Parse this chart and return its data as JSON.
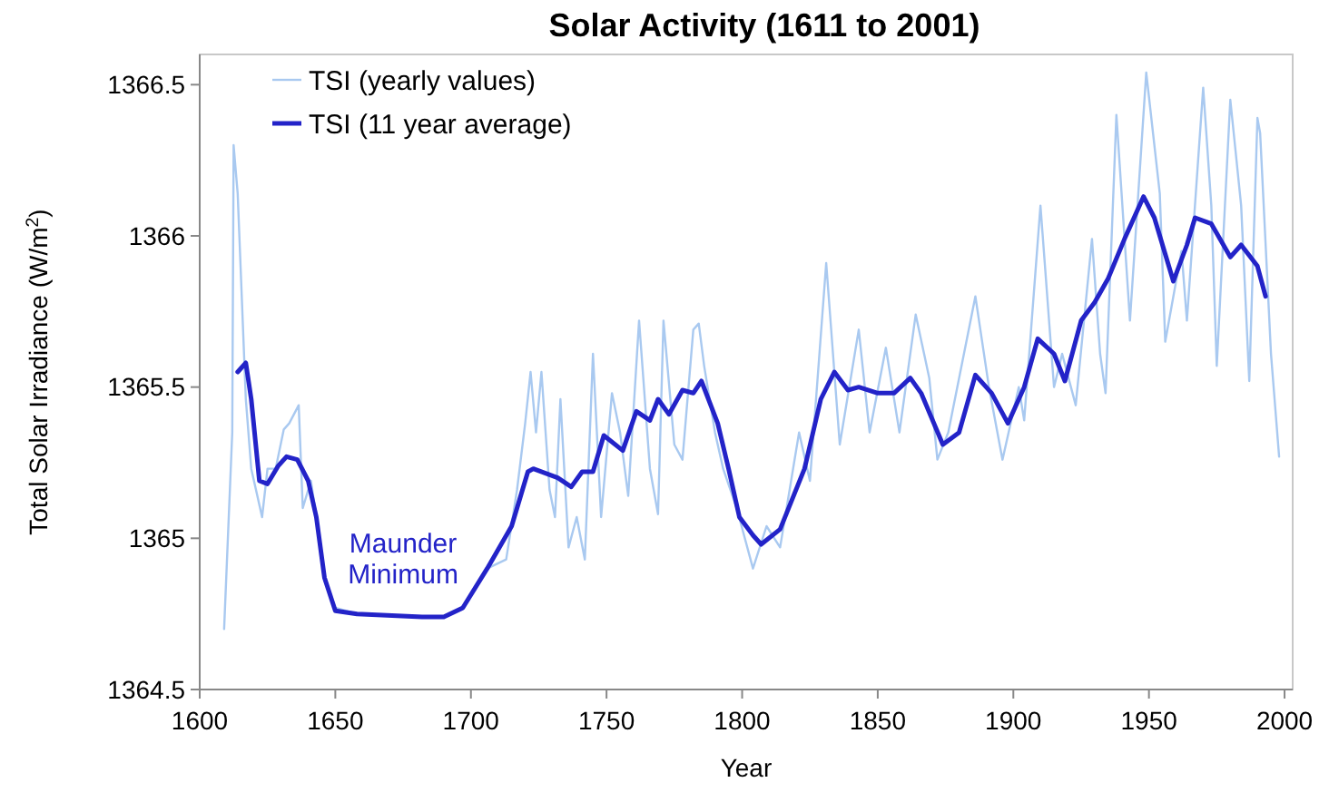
{
  "chart_data": {
    "type": "line",
    "title": "Solar Activity (1611 to 2001)",
    "xlabel": "Year",
    "ylabel": "Total Solar Irradiance (W/m$^{2}$)",
    "xlim": [
      1600,
      2003
    ],
    "ylim": [
      1364.5,
      1366.6
    ],
    "xticks": [
      1600,
      1650,
      1700,
      1750,
      1800,
      1850,
      1900,
      1950,
      2000
    ],
    "yticks": [
      1364.5,
      1365,
      1365.5,
      1366,
      1366.5
    ],
    "grid": false,
    "legend": "top left",
    "marker": "none",
    "annotations": [
      {
        "text": "Maunder Minimum",
        "x": 1675,
        "y": 1364.75
      }
    ],
    "series": [
      {
        "name": "TSI (yearly values)",
        "color": "#a9c9f0",
        "line_style": "solid",
        "x": [
          1609,
          1612,
          1612.5,
          1614,
          1617,
          1619,
          1621,
          1623,
          1625,
          1628,
          1631,
          1633,
          1636.5,
          1638,
          1641,
          1643,
          1646,
          1650,
          1658,
          1682,
          1690,
          1697,
          1706,
          1713,
          1717,
          1720,
          1722,
          1724,
          1726,
          1729,
          1731,
          1733,
          1736,
          1739,
          1742,
          1745,
          1748,
          1752,
          1755,
          1758,
          1762,
          1766,
          1769,
          1771,
          1775,
          1778,
          1782,
          1784,
          1786,
          1790,
          1793,
          1798,
          1804,
          1809,
          1814,
          1821,
          1825,
          1831,
          1836,
          1843,
          1847,
          1853,
          1858,
          1864,
          1869,
          1872,
          1876,
          1886,
          1891,
          1896,
          1902,
          1904,
          1910,
          1915,
          1918,
          1923,
          1929,
          1932,
          1934,
          1938,
          1943,
          1949,
          1954,
          1956,
          1962,
          1964,
          1970,
          1973,
          1975,
          1980,
          1984,
          1987,
          1990,
          1991,
          1995,
          1998
        ],
        "values": [
          1364.7,
          1365.35,
          1366.3,
          1366.14,
          1365.46,
          1365.23,
          1365.15,
          1365.07,
          1365.23,
          1365.23,
          1365.36,
          1365.38,
          1365.44,
          1365.1,
          1365.19,
          1365.07,
          1364.86,
          1364.77,
          1364.75,
          1364.74,
          1364.74,
          1364.77,
          1364.9,
          1364.93,
          1365.16,
          1365.38,
          1365.55,
          1365.35,
          1365.55,
          1365.16,
          1365.07,
          1365.46,
          1364.97,
          1365.07,
          1364.93,
          1365.61,
          1365.07,
          1365.48,
          1365.35,
          1365.14,
          1365.72,
          1365.23,
          1365.08,
          1365.72,
          1365.31,
          1365.26,
          1365.69,
          1365.71,
          1365.57,
          1365.35,
          1365.23,
          1365.1,
          1364.9,
          1365.04,
          1364.97,
          1365.35,
          1365.19,
          1365.91,
          1365.31,
          1365.69,
          1365.35,
          1365.63,
          1365.35,
          1365.74,
          1365.53,
          1365.26,
          1365.35,
          1365.8,
          1365.5,
          1365.26,
          1365.5,
          1365.39,
          1366.1,
          1365.5,
          1365.61,
          1365.44,
          1365.99,
          1365.61,
          1365.48,
          1366.4,
          1365.72,
          1366.54,
          1366.14,
          1365.65,
          1365.95,
          1365.72,
          1366.49,
          1366.1,
          1365.57,
          1366.45,
          1366.1,
          1365.52,
          1366.39,
          1366.34,
          1365.61,
          1365.27
        ]
      },
      {
        "name": "TSI (11 year average)",
        "color": "#2323c8",
        "line_style": "solid",
        "x": [
          1614,
          1617,
          1619,
          1622,
          1625,
          1629,
          1632,
          1636,
          1640,
          1643,
          1646,
          1650,
          1658,
          1682,
          1690,
          1697,
          1706,
          1715,
          1721,
          1723,
          1732,
          1737,
          1741,
          1745,
          1749,
          1756,
          1761,
          1766,
          1769,
          1773,
          1778,
          1782,
          1785,
          1791,
          1795,
          1799,
          1804,
          1807,
          1814,
          1823,
          1829,
          1834,
          1839,
          1843,
          1850,
          1856,
          1862,
          1866,
          1874,
          1880,
          1886,
          1892,
          1898,
          1904,
          1909,
          1915,
          1919,
          1925,
          1930,
          1935,
          1941,
          1948,
          1952,
          1959,
          1964,
          1967,
          1973,
          1980,
          1984,
          1990,
          1993
        ],
        "values": [
          1365.55,
          1365.58,
          1365.46,
          1365.19,
          1365.18,
          1365.24,
          1365.27,
          1365.26,
          1365.19,
          1365.07,
          1364.87,
          1364.76,
          1364.75,
          1364.74,
          1364.74,
          1364.77,
          1364.9,
          1365.04,
          1365.22,
          1365.23,
          1365.2,
          1365.17,
          1365.22,
          1365.22,
          1365.34,
          1365.29,
          1365.42,
          1365.39,
          1365.46,
          1365.41,
          1365.49,
          1365.48,
          1365.52,
          1365.38,
          1365.23,
          1365.07,
          1365.01,
          1364.98,
          1365.03,
          1365.23,
          1365.46,
          1365.55,
          1365.49,
          1365.5,
          1365.48,
          1365.48,
          1365.53,
          1365.48,
          1365.31,
          1365.35,
          1365.54,
          1365.48,
          1365.38,
          1365.5,
          1365.66,
          1365.61,
          1365.52,
          1365.72,
          1365.78,
          1365.86,
          1365.99,
          1366.13,
          1366.06,
          1365.85,
          1365.97,
          1366.06,
          1366.04,
          1365.93,
          1365.97,
          1365.9,
          1365.8
        ]
      }
    ]
  }
}
